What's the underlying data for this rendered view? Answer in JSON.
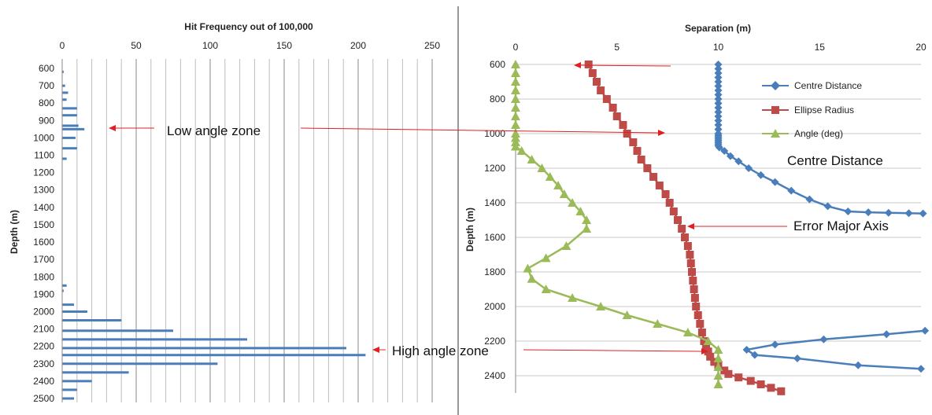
{
  "chart_data": [
    {
      "type": "bar",
      "orientation": "horizontal",
      "title": "Hit Frequency out of 100,000",
      "xlabel": "",
      "ylabel": "Depth (m)",
      "xlim": [
        0,
        250
      ],
      "xticks": [
        "0",
        "50",
        "100",
        "150",
        "200",
        "250"
      ],
      "ylim": [
        600,
        2500
      ],
      "yticks": [
        "600",
        "700",
        "800",
        "900",
        "1000",
        "1100",
        "1200",
        "1300",
        "1400",
        "1500",
        "1600",
        "1700",
        "1800",
        "1900",
        "2000",
        "2100",
        "2200",
        "2300",
        "2400",
        "2500"
      ],
      "grid": "vertical",
      "bars": {
        "depth": [
          620,
          700,
          740,
          780,
          830,
          870,
          930,
          950,
          1000,
          1060,
          1120,
          1850,
          1880,
          1960,
          2000,
          2050,
          2110,
          2160,
          2210,
          2250,
          2300,
          2350,
          2400,
          2450,
          2500
        ],
        "value": [
          1,
          2,
          4,
          3,
          10,
          10,
          11,
          15,
          9,
          10,
          3,
          3,
          1,
          8,
          17,
          40,
          75,
          125,
          192,
          205,
          105,
          45,
          20,
          10,
          8
        ]
      },
      "annotations": {
        "low": "Low angle zone",
        "high": "High angle zone"
      },
      "color": "#4a7ebb"
    },
    {
      "type": "line",
      "title": "Separation (m)",
      "xlabel": "",
      "ylabel": "Depth (m)",
      "xlim": [
        0,
        20
      ],
      "xticks": [
        "0",
        "5",
        "10",
        "15",
        "20"
      ],
      "ylim": [
        600,
        2500
      ],
      "yticks": [
        "600",
        "800",
        "1000",
        "1200",
        "1400",
        "1600",
        "1800",
        "2000",
        "2200",
        "2400"
      ],
      "grid": "horizontal",
      "legend_position": "top-right",
      "series": [
        {
          "name": "Centre Distance",
          "color": "#4a7ebb",
          "marker": "diamond",
          "x": [
            10,
            10,
            10,
            10,
            10,
            10,
            10,
            10,
            10,
            10,
            10,
            10,
            10,
            10,
            10,
            10,
            10,
            10,
            10,
            10,
            10,
            10,
            10,
            10,
            10.05,
            10.3,
            10.6,
            11.0,
            11.5,
            12.1,
            12.8,
            13.6,
            14.5,
            15.4,
            16.4,
            17.4,
            18.4,
            19.4,
            20.1
          ],
          "y": [
            600,
            625,
            650,
            675,
            700,
            725,
            750,
            775,
            800,
            825,
            850,
            875,
            900,
            925,
            950,
            975,
            1000,
            1010,
            1020,
            1030,
            1040,
            1050,
            1060,
            1070,
            1080,
            1100,
            1130,
            1160,
            1200,
            1240,
            1280,
            1330,
            1380,
            1420,
            1450,
            1455,
            1458,
            1460,
            1462
          ]
        },
        {
          "name": "Centre Distance",
          "color": "#4a7ebb",
          "marker": "diamond",
          "x": [
            20.2,
            18.3,
            15.2,
            12.8,
            11.4,
            11.8,
            13.9,
            16.9,
            20.0
          ],
          "y": [
            2140,
            2160,
            2190,
            2220,
            2250,
            2280,
            2300,
            2340,
            2360
          ]
        },
        {
          "name": "Ellipse Radius",
          "color": "#be4b48",
          "marker": "square",
          "x": [
            3.6,
            3.8,
            4.0,
            4.2,
            4.5,
            4.8,
            5.0,
            5.3,
            5.5,
            5.8,
            6.0,
            6.2,
            6.5,
            6.8,
            7.1,
            7.4,
            7.6,
            7.8,
            8.0,
            8.2,
            8.35,
            8.5,
            8.6,
            8.65,
            8.7,
            8.75,
            8.8,
            8.85,
            8.9,
            9.0,
            9.1,
            9.2,
            9.3,
            9.4,
            9.5,
            9.6,
            9.8,
            10.0,
            10.3,
            10.5,
            11.0,
            11.6,
            12.1,
            12.6,
            13.1
          ],
          "y": [
            600,
            650,
            700,
            750,
            800,
            850,
            900,
            950,
            1000,
            1050,
            1100,
            1150,
            1200,
            1250,
            1300,
            1350,
            1400,
            1450,
            1500,
            1550,
            1600,
            1650,
            1700,
            1750,
            1800,
            1850,
            1900,
            1950,
            2000,
            2050,
            2100,
            2150,
            2200,
            2230,
            2260,
            2290,
            2320,
            2340,
            2370,
            2390,
            2410,
            2430,
            2450,
            2470,
            2490
          ]
        },
        {
          "name": "Angle (deg)",
          "color": "#9bbb59",
          "marker": "triangle",
          "x": [
            0,
            0,
            0,
            0,
            0,
            0,
            0,
            0,
            0,
            0,
            0,
            0,
            0.3,
            0.8,
            1.3,
            1.7,
            2.1,
            2.4,
            2.8,
            3.2,
            3.5,
            3.5,
            2.5,
            1.5,
            0.6,
            0.8,
            1.5,
            2.8,
            4.2,
            5.5,
            7.0,
            8.5,
            9.5,
            10.0,
            10.0,
            10.0,
            10.0,
            10.0
          ],
          "y": [
            600,
            650,
            700,
            750,
            800,
            850,
            900,
            950,
            1000,
            1025,
            1050,
            1075,
            1100,
            1150,
            1200,
            1250,
            1300,
            1350,
            1400,
            1450,
            1500,
            1550,
            1650,
            1720,
            1780,
            1840,
            1900,
            1950,
            2000,
            2050,
            2100,
            2150,
            2200,
            2250,
            2300,
            2350,
            2400,
            2450
          ]
        }
      ],
      "labels": {
        "centre": "Centre Distance",
        "error": "Error Major Axis"
      }
    }
  ]
}
